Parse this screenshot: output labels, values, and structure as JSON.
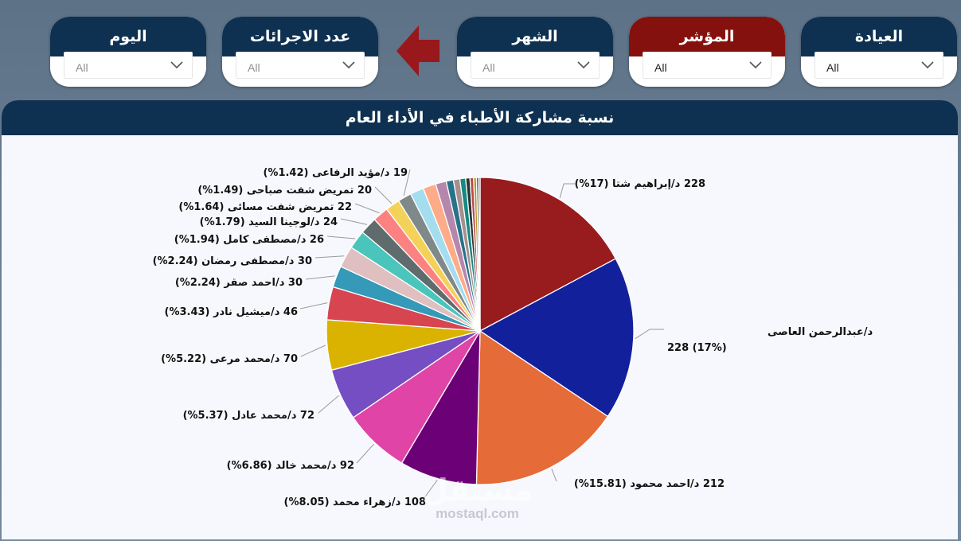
{
  "slicers": [
    {
      "id": "clinic",
      "title": "العيادة",
      "value": "All",
      "accent": false,
      "dark": true
    },
    {
      "id": "indicator",
      "title": "المؤشر",
      "value": "All",
      "accent": true,
      "dark": true
    },
    {
      "id": "month",
      "title": "الشهر",
      "value": "All",
      "accent": false,
      "dark": false
    },
    {
      "id": "procedures",
      "title": "عدد الاجرائات",
      "value": "All",
      "accent": false,
      "dark": false
    },
    {
      "id": "day",
      "title": "اليوم",
      "value": "All",
      "accent": false,
      "dark": false
    }
  ],
  "colors": {
    "header": "#0e3151",
    "accent": "#85110f",
    "arrow": "#98181b"
  },
  "watermark": {
    "arabic": "مستقل",
    "latin": "mostaql.com"
  },
  "chart_data": {
    "type": "pie",
    "title": "نسبة مشاركة الأطباء في الأداء العام",
    "slices": [
      {
        "label": "228 د/إبراهيم شتا (17%)",
        "value": 228,
        "percent": 17,
        "color": "#981b1e"
      },
      {
        "label": "د/عبدالرحمن العاصى",
        "label2": "228 (17%)",
        "value": 228,
        "percent": 17,
        "color": "#13209b"
      },
      {
        "label": "212 د/احمد محمود (15.81%)",
        "value": 212,
        "percent": 15.81,
        "color": "#e56b39"
      },
      {
        "label": "108 د/زهراء محمد (8.05%)",
        "value": 108,
        "percent": 8.05,
        "color": "#6c0077"
      },
      {
        "label": "92 د/محمد خالد (6.86%)",
        "value": 92,
        "percent": 6.86,
        "color": "#e044a7"
      },
      {
        "label": "72 د/محمد عادل (5.37%)",
        "value": 72,
        "percent": 5.37,
        "color": "#744ec2"
      },
      {
        "label": "70 د/محمد مرعى (5.22%)",
        "value": 70,
        "percent": 5.22,
        "color": "#d9b300"
      },
      {
        "label": "46 د/ميشيل نادر (3.43%)",
        "value": 46,
        "percent": 3.43,
        "color": "#d64550"
      },
      {
        "label": "30 د/احمد صقر (2.24%)",
        "value": 30,
        "percent": 2.24,
        "color": "#3599b8"
      },
      {
        "label": "30 د/مصطفى رمضان (2.24%)",
        "value": 30,
        "percent": 2.24,
        "color": "#dfbfbf"
      },
      {
        "label": "26 د/مصطفى كامل (1.94%)",
        "value": 26,
        "percent": 1.94,
        "color": "#4ac5bb"
      },
      {
        "label": "24 د/لوجينا السيد (1.79%)",
        "value": 24,
        "percent": 1.79,
        "color": "#5f6b6d"
      },
      {
        "label": "22 تمريض شفت مسائى (1.64%)",
        "value": 22,
        "percent": 1.64,
        "color": "#fb8281"
      },
      {
        "label": "20 تمريض شفت صباحى (1.49%)",
        "value": 20,
        "percent": 1.49,
        "color": "#f4d25a"
      },
      {
        "label": "19 د/مؤيد الرفاعى (1.42%)",
        "value": 19,
        "percent": 1.42,
        "color": "#7f898a"
      },
      {
        "label": "",
        "value": 19,
        "percent": 1.42,
        "color": "#a4ddee"
      },
      {
        "label": "",
        "value": 18,
        "percent": 1.34,
        "color": "#fdab89"
      },
      {
        "label": "",
        "value": 15,
        "percent": 1.12,
        "color": "#b687ac"
      },
      {
        "label": "",
        "value": 10,
        "percent": 0.75,
        "color": "#28738a"
      },
      {
        "label": "",
        "value": 9,
        "percent": 0.67,
        "color": "#a78f8f"
      },
      {
        "label": "",
        "value": 8,
        "percent": 0.6,
        "color": "#168980"
      },
      {
        "label": "",
        "value": 6,
        "percent": 0.45,
        "color": "#293537"
      },
      {
        "label": "",
        "value": 5,
        "percent": 0.37,
        "color": "#bb4a4a"
      },
      {
        "label": "",
        "value": 4,
        "percent": 0.3,
        "color": "#b59525"
      },
      {
        "label": "",
        "value": 3,
        "percent": 0.22,
        "color": "#475052"
      },
      {
        "label": "",
        "value": 2,
        "percent": 0.15,
        "color": "#6a1b9a"
      }
    ]
  }
}
